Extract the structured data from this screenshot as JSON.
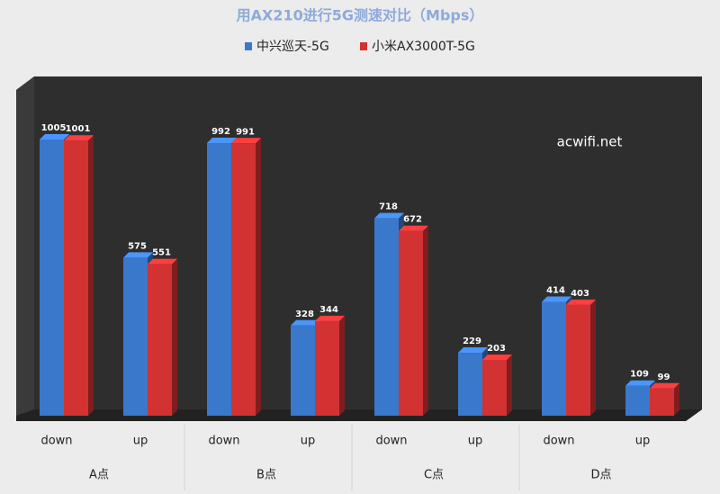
{
  "chart_data": {
    "type": "bar3d",
    "title": "用AX210进行5G测速对比（Mbps）",
    "annotation": "acwifi.net",
    "categories": [
      "down",
      "up",
      "down",
      "up",
      "down",
      "up",
      "down",
      "up"
    ],
    "groups": [
      "A点",
      "B点",
      "C点",
      "D点"
    ],
    "series": [
      {
        "name": "中兴巡天-5G",
        "color": "#3a78cc",
        "values": [
          1005,
          575,
          992,
          328,
          718,
          229,
          414,
          109
        ]
      },
      {
        "name": "小米AX3000T-5G",
        "color": "#d23232",
        "values": [
          1001,
          551,
          991,
          344,
          672,
          203,
          403,
          99
        ]
      }
    ]
  }
}
